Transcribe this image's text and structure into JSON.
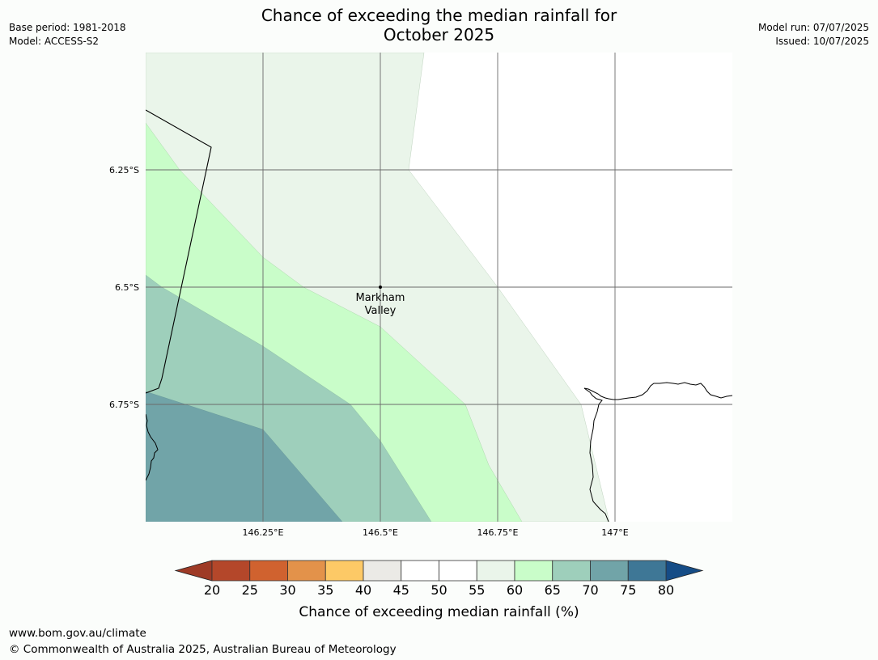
{
  "title": {
    "line1": "Chance of exceeding the median rainfall for",
    "line2": "October 2025"
  },
  "meta_left": {
    "base_period": "Base period: 1981-2018",
    "model": "Model: ACCESS-S2"
  },
  "meta_right": {
    "model_run": "Model run: 07/07/2025",
    "issued": "Issued: 10/07/2025"
  },
  "map": {
    "lon_range": [
      146.0,
      147.25
    ],
    "lat_range": [
      -7.0,
      -6.0
    ],
    "lon_ticks": [
      {
        "value": 146.25,
        "label": "146.25°E"
      },
      {
        "value": 146.5,
        "label": "146.5°E"
      },
      {
        "value": 146.75,
        "label": "146.75°E"
      },
      {
        "value": 147.0,
        "label": "147°E"
      }
    ],
    "lat_ticks": [
      {
        "value": -6.25,
        "label": "6.25°S"
      },
      {
        "value": -6.5,
        "label": "6.5°S"
      },
      {
        "value": -6.75,
        "label": "6.75°S"
      }
    ],
    "place": {
      "name_line1": "Markham",
      "name_line2": "Valley",
      "lon": 146.5,
      "lat": -6.5
    }
  },
  "colorbar": {
    "label": "Chance of exceeding median rainfall (%)",
    "ticks": [
      "20",
      "25",
      "30",
      "35",
      "40",
      "45",
      "50",
      "55",
      "60",
      "65",
      "70",
      "75",
      "80"
    ],
    "under_color": "#9e3a26",
    "over_color": "#154c86",
    "colors": [
      "#b4472a",
      "#d0622f",
      "#e3924a",
      "#fdc966",
      "#ebeae6",
      "#ffffff",
      "#ffffff",
      "#eaf5ea",
      "#c9fdc9",
      "#9ecfbb",
      "#71a4a8",
      "#3e7796"
    ]
  },
  "footer": {
    "url": "www.bom.gov.au/climate",
    "copyright": "© Commonwealth of Australia 2025, Australian Bureau of Meteorology"
  }
}
